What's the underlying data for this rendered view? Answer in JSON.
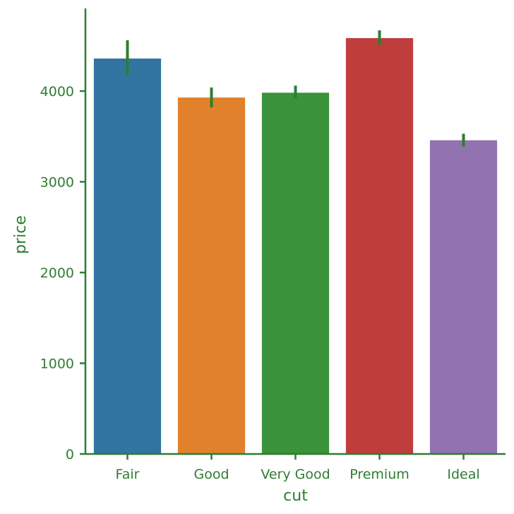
{
  "chart_data": {
    "type": "bar",
    "categories": [
      "Fair",
      "Good",
      "Very Good",
      "Premium",
      "Ideal"
    ],
    "values": [
      4359,
      3929,
      3982,
      4584,
      3458
    ],
    "error_bars": [
      [
        4180,
        4560
      ],
      [
        3820,
        4040
      ],
      [
        3920,
        4060
      ],
      [
        4510,
        4670
      ],
      [
        3390,
        3530
      ]
    ],
    "bar_colors": [
      "#3274a1",
      "#e1812c",
      "#3a923a",
      "#c03d3e",
      "#9372b2"
    ],
    "xlabel": "cut",
    "ylabel": "price",
    "ylim": [
      0,
      4900
    ],
    "yticks": [
      0,
      1000,
      2000,
      3000,
      4000
    ],
    "ytick_labels": [
      "0",
      "1000",
      "2000",
      "3000",
      "4000"
    ],
    "axis_color": "#2e7d32",
    "errorbar_color": "#2e7d32",
    "grid": false,
    "legend": "none"
  }
}
